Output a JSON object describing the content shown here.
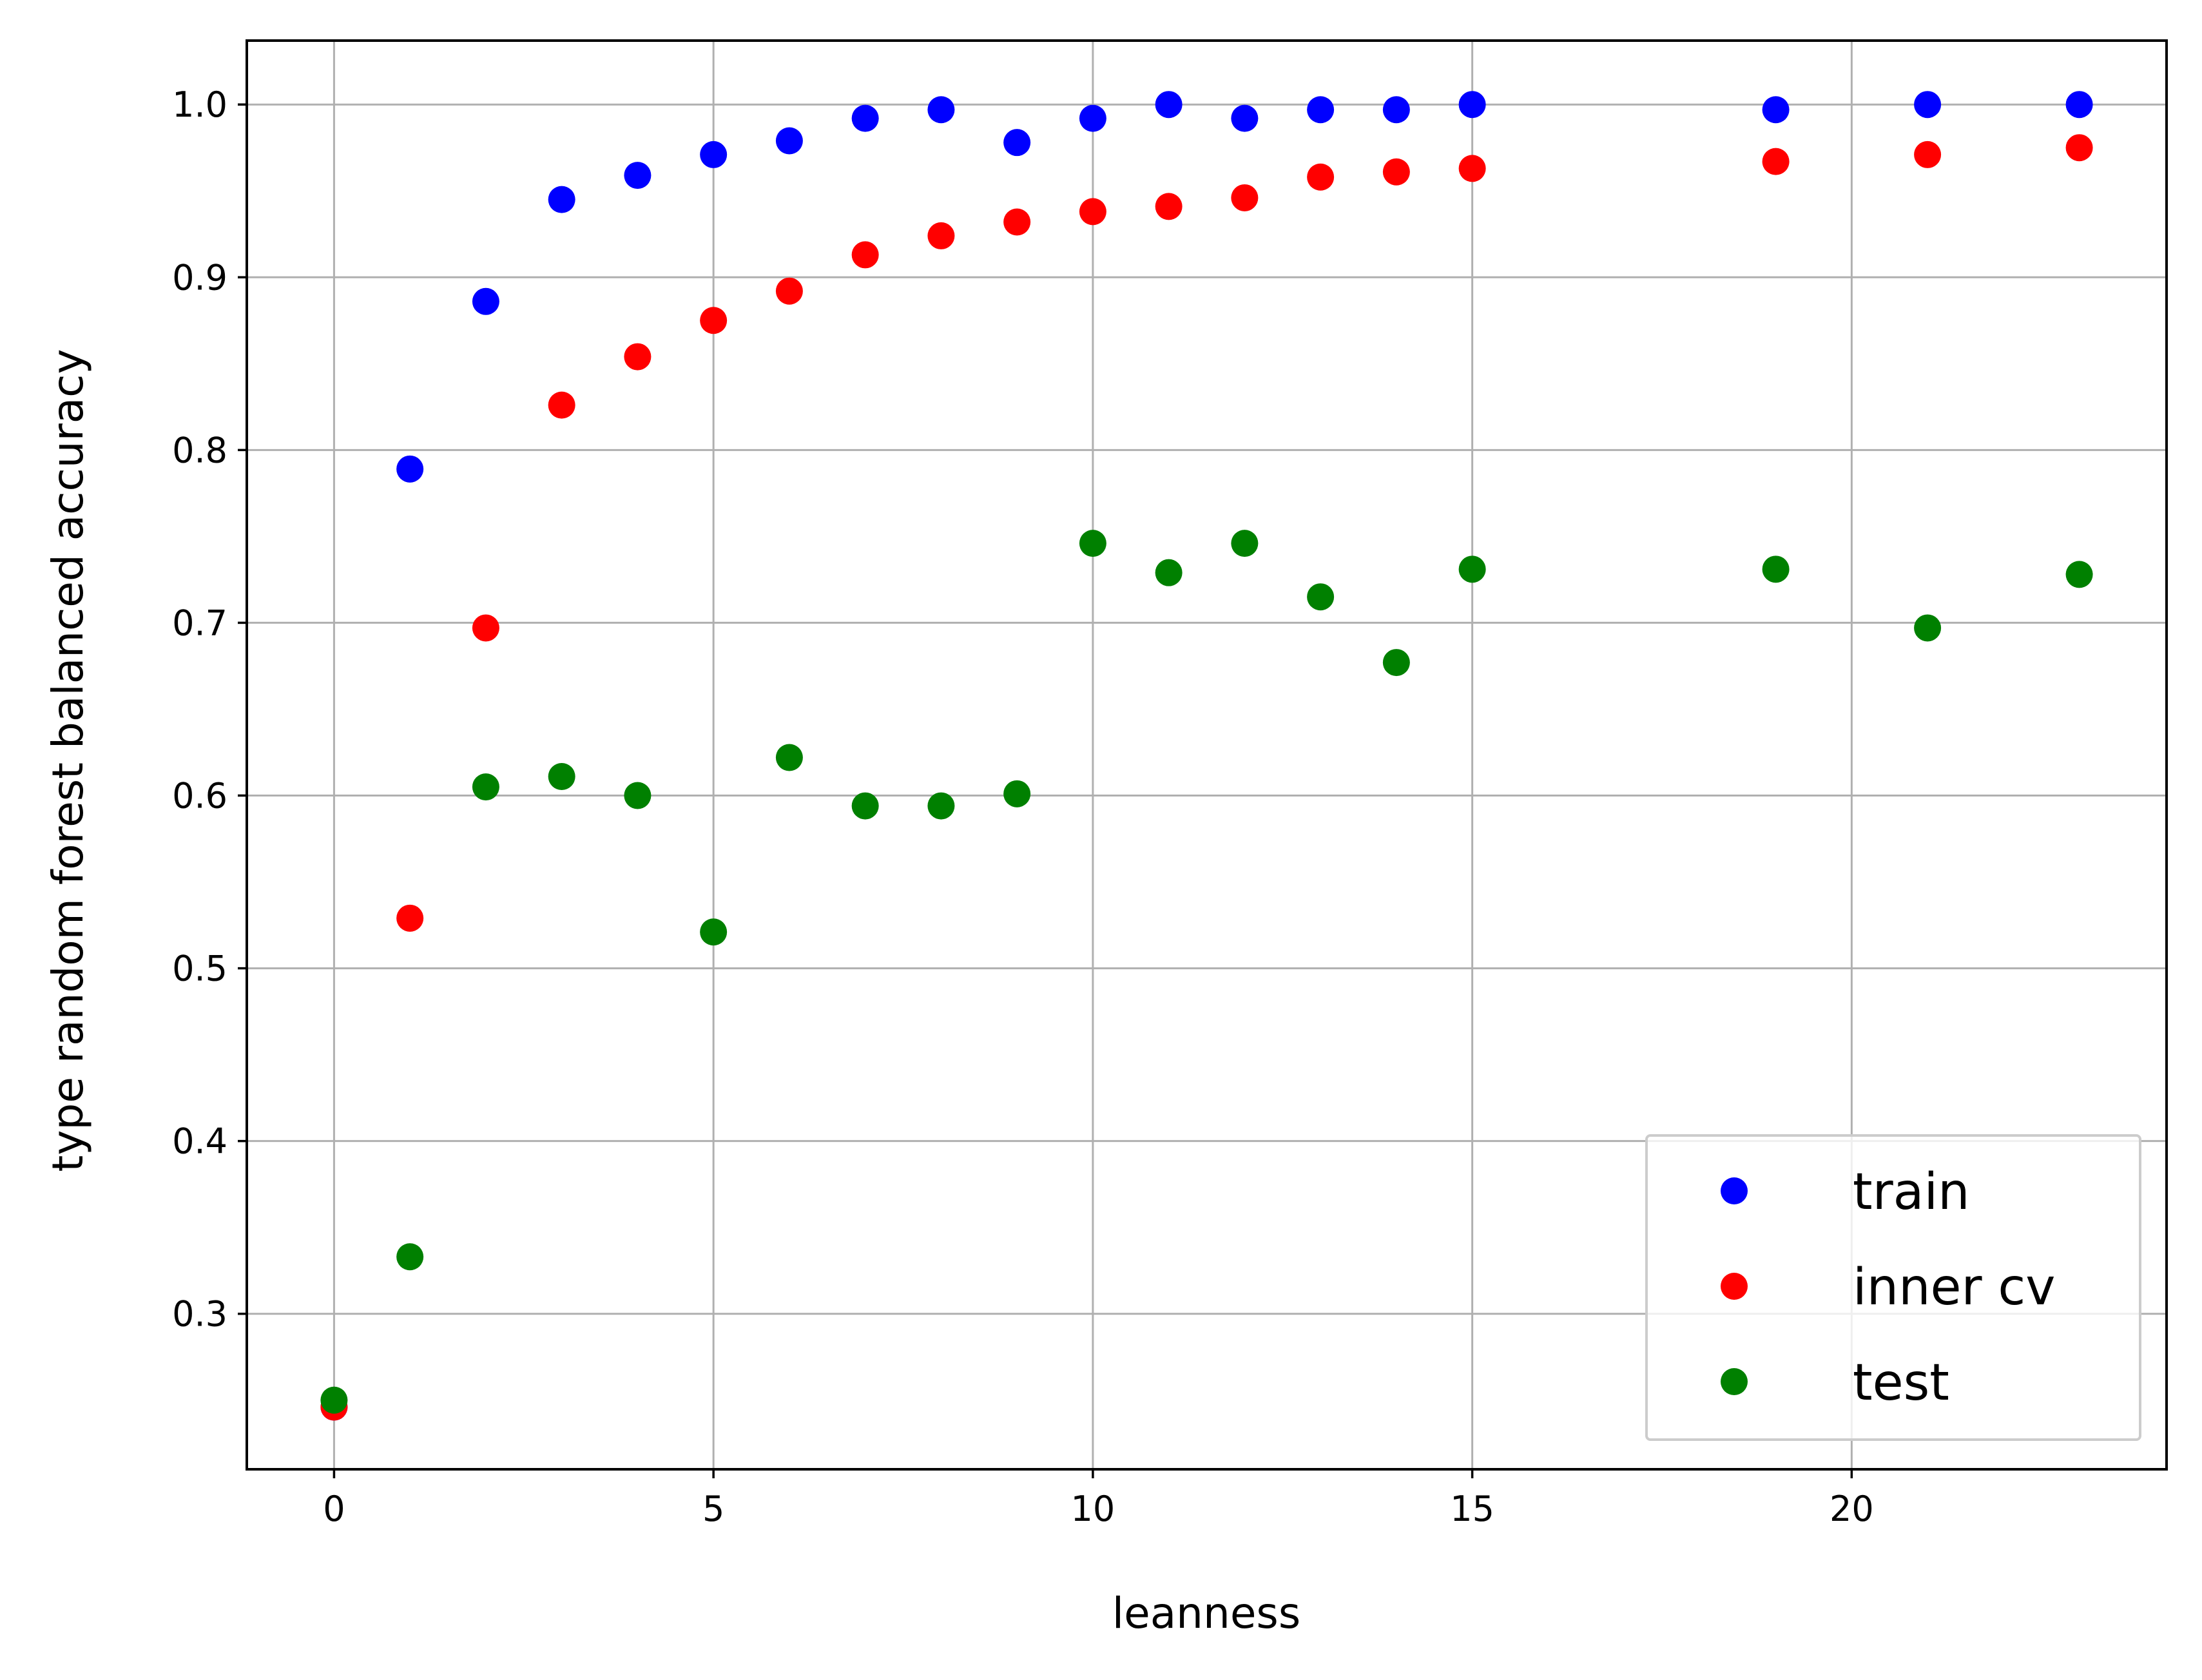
{
  "chart_data": {
    "type": "scatter",
    "xlabel": "leanness",
    "ylabel": "type random forest balanced accuracy",
    "xlim": [
      -1.15,
      24.15
    ],
    "ylim": [
      0.21,
      1.037
    ],
    "xticks": [
      0,
      5,
      10,
      15,
      20
    ],
    "yticks": [
      0.3,
      0.4,
      0.5,
      0.6,
      0.7,
      0.8,
      0.9,
      1.0
    ],
    "xtick_labels": [
      "0",
      "5",
      "10",
      "15",
      "20"
    ],
    "ytick_labels": [
      "0.3",
      "0.4",
      "0.5",
      "0.6",
      "0.7",
      "0.8",
      "0.9",
      "1.0"
    ],
    "grid": true,
    "legend_position": "lower-right",
    "x": [
      0,
      1,
      2,
      3,
      4,
      5,
      6,
      7,
      8,
      9,
      10,
      11,
      12,
      13,
      14,
      15,
      19,
      21,
      23
    ],
    "series": [
      {
        "name": "train",
        "color": "#0000ff",
        "values": [
          0.246,
          0.789,
          0.886,
          0.945,
          0.959,
          0.971,
          0.979,
          0.992,
          0.997,
          0.978,
          0.992,
          1.0,
          0.992,
          0.997,
          0.997,
          1.0,
          0.997,
          1.0,
          1.0
        ]
      },
      {
        "name": "inner cv",
        "color": "#ff0000",
        "values": [
          0.246,
          0.529,
          0.697,
          0.826,
          0.854,
          0.875,
          0.892,
          0.913,
          0.924,
          0.932,
          0.938,
          0.941,
          0.946,
          0.958,
          0.961,
          0.963,
          0.967,
          0.971,
          0.975
        ]
      },
      {
        "name": "test",
        "color": "#008000",
        "values": [
          0.25,
          0.333,
          0.605,
          0.611,
          0.6,
          0.521,
          0.622,
          0.594,
          0.594,
          0.601,
          0.746,
          0.729,
          0.746,
          0.715,
          0.677,
          0.731,
          0.731,
          0.697,
          0.728
        ]
      }
    ]
  }
}
